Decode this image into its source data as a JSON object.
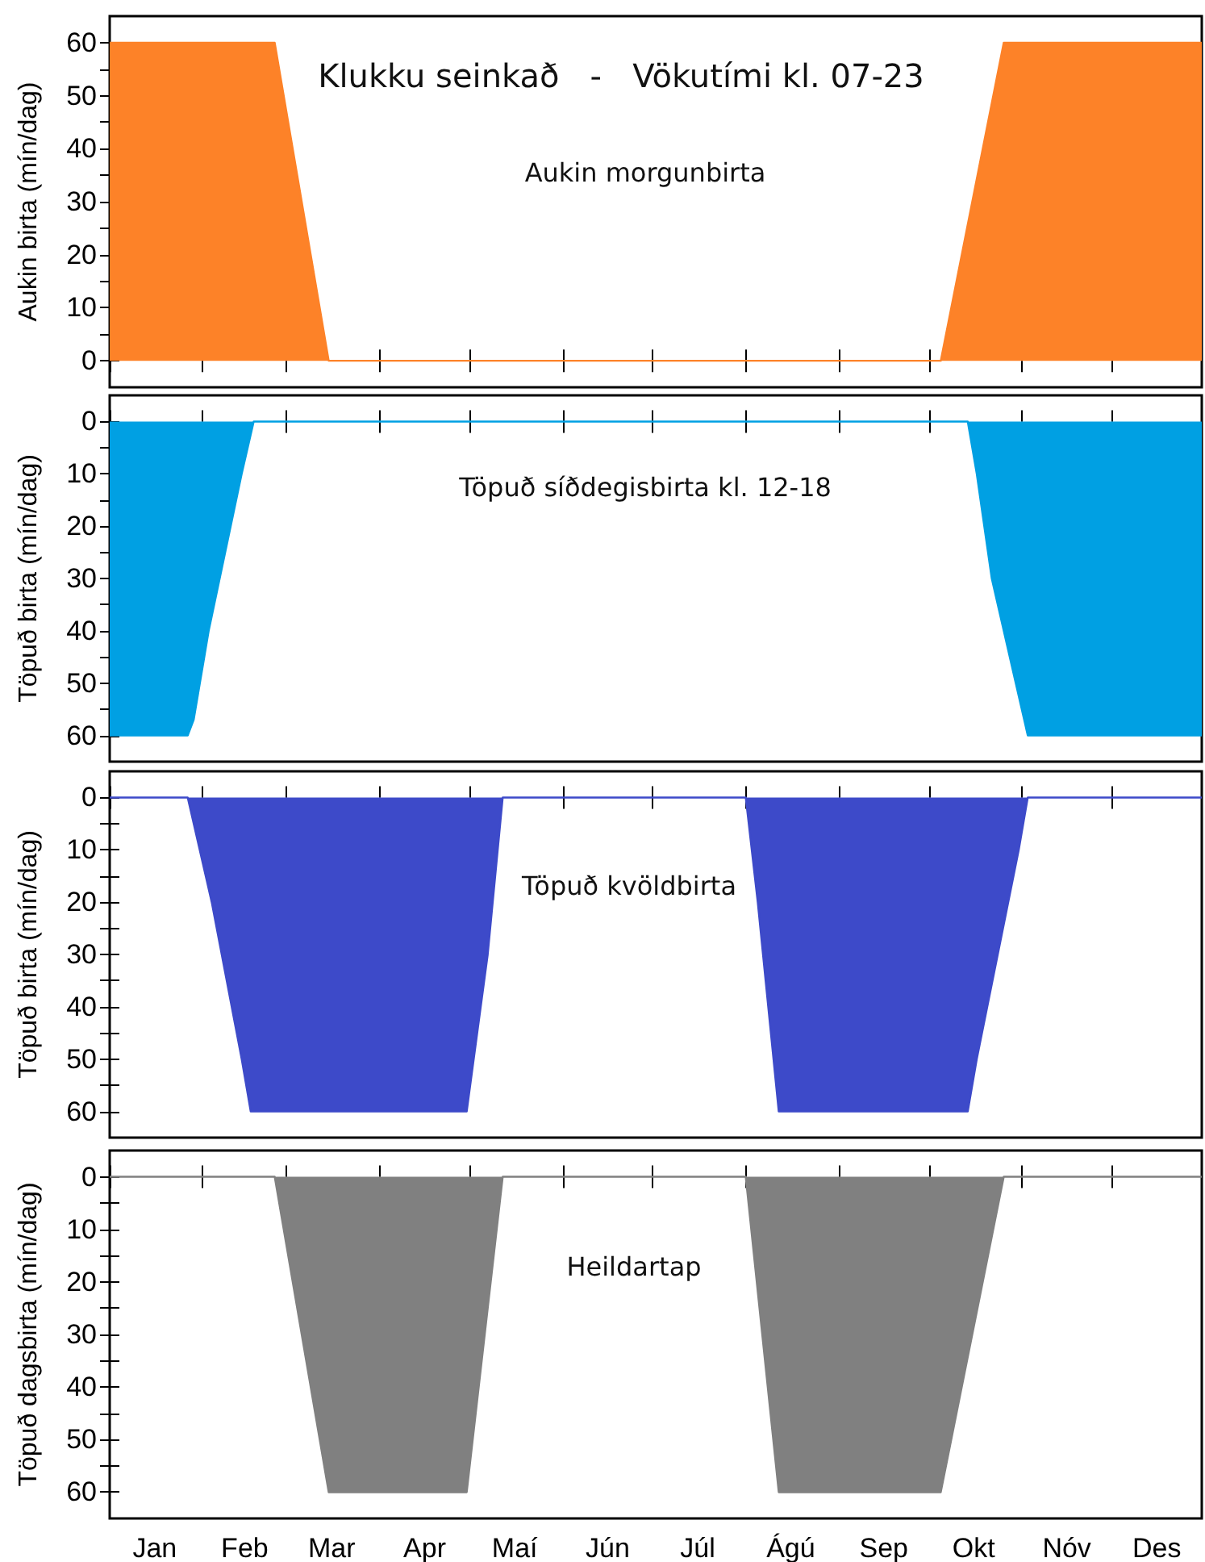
{
  "chart_data": [
    {
      "type": "area",
      "title": "Klukku seinkað   -   Vökutími kl. 07-23",
      "ylabel": "Aukin birta (mín/dag)",
      "annotations": [
        "Aukin morgunbirta"
      ],
      "series": [
        {
          "color": "#fd8228",
          "x": [
            "--01-01",
            "--02-25",
            "--03-15",
            "--10-05",
            "--10-26",
            "--12-31"
          ],
          "values": [
            60,
            60,
            0,
            0,
            60,
            60
          ]
        }
      ],
      "xlim": [
        "--01-01",
        "--12-31"
      ],
      "xticks": [
        {
          "value": "--01-01",
          "label": null
        },
        {
          "value": "--02-01",
          "label": null
        },
        {
          "value": "--03-01",
          "label": null
        },
        {
          "value": "--04-01",
          "label": null
        },
        {
          "value": "--05-01",
          "label": null
        },
        {
          "value": "--06-01",
          "label": null
        },
        {
          "value": "--07-01",
          "label": null
        },
        {
          "value": "--08-01",
          "label": null
        },
        {
          "value": "--09-01",
          "label": null
        },
        {
          "value": "--10-01",
          "label": null
        },
        {
          "value": "--11-01",
          "label": null
        },
        {
          "value": "--12-01",
          "label": null
        }
      ],
      "ylim": [
        -5,
        65
      ],
      "yticks": [
        0,
        {
          "value": 5,
          "label": null
        },
        10,
        {
          "value": 15,
          "label": null
        },
        20,
        {
          "value": 25,
          "label": null
        },
        30,
        {
          "value": 35,
          "label": null
        },
        40,
        {
          "value": 45,
          "label": null
        },
        50,
        {
          "value": 55,
          "label": null
        },
        60
      ],
      "tick_labels": "y",
      "grid": false
    },
    {
      "type": "area",
      "ylabel": "Töpuð birta (mín/dag)",
      "annotations": [
        "Töpuð síðdegisbirta kl. 12-18"
      ],
      "series": [
        {
          "color": "#00a0e3",
          "x": [
            "--01-01",
            "--01-27",
            "--01-29",
            "--02-03",
            "--02-14",
            "--02-18",
            "--10-14",
            "--10-17",
            "--10-22",
            "--10-30",
            "--11-03",
            "--12-31"
          ],
          "values": [
            60,
            60,
            57,
            40,
            10,
            0,
            0,
            10,
            30,
            50,
            60,
            60
          ]
        }
      ],
      "xlim": [
        "--01-01",
        "--12-31"
      ],
      "xticks": [
        {
          "value": "--01-01",
          "label": null
        },
        {
          "value": "--02-01",
          "label": null
        },
        {
          "value": "--03-01",
          "label": null
        },
        {
          "value": "--04-01",
          "label": null
        },
        {
          "value": "--05-01",
          "label": null
        },
        {
          "value": "--06-01",
          "label": null
        },
        {
          "value": "--07-01",
          "label": null
        },
        {
          "value": "--08-01",
          "label": null
        },
        {
          "value": "--09-01",
          "label": null
        },
        {
          "value": "--10-01",
          "label": null
        },
        {
          "value": "--11-01",
          "label": null
        },
        {
          "value": "--12-01",
          "label": null
        }
      ],
      "ylim": [
        65,
        -5
      ],
      "yticks": [
        0,
        {
          "value": 5,
          "label": null
        },
        10,
        {
          "value": 15,
          "label": null
        },
        20,
        {
          "value": 25,
          "label": null
        },
        30,
        {
          "value": 35,
          "label": null
        },
        40,
        {
          "value": 45,
          "label": null
        },
        50,
        {
          "value": 55,
          "label": null
        },
        60
      ],
      "tick_labels": "y",
      "grid": false
    },
    {
      "type": "area",
      "ylabel": "Töpuð birta (mín/dag)",
      "annotations": [
        "Töpuð kvöldbirta"
      ],
      "series": [
        {
          "color": "#3d4ac9",
          "x": [
            "--01-01",
            "--01-27",
            "--02-04",
            "--02-14",
            "--02-17",
            "--04-30",
            "--05-07",
            "--05-12",
            "--08-01",
            "--08-05",
            "--08-12",
            "--10-14",
            "--10-17",
            "--10-31",
            "--11-03",
            "--12-31"
          ],
          "values": [
            0,
            0,
            20,
            50,
            60,
            60,
            30,
            0,
            0,
            20,
            60,
            60,
            50,
            10,
            0,
            0
          ]
        }
      ],
      "xlim": [
        "--01-01",
        "--12-31"
      ],
      "xticks": [
        {
          "value": "--01-01",
          "label": null
        },
        {
          "value": "--02-01",
          "label": null
        },
        {
          "value": "--03-01",
          "label": null
        },
        {
          "value": "--04-01",
          "label": null
        },
        {
          "value": "--05-01",
          "label": null
        },
        {
          "value": "--06-01",
          "label": null
        },
        {
          "value": "--07-01",
          "label": null
        },
        {
          "value": "--08-01",
          "label": null
        },
        {
          "value": "--09-01",
          "label": null
        },
        {
          "value": "--10-01",
          "label": null
        },
        {
          "value": "--11-01",
          "label": null
        },
        {
          "value": "--12-01",
          "label": null
        }
      ],
      "ylim": [
        65,
        -5
      ],
      "yticks": [
        0,
        {
          "value": 5,
          "label": null
        },
        10,
        {
          "value": 15,
          "label": null
        },
        20,
        {
          "value": 25,
          "label": null
        },
        30,
        {
          "value": 35,
          "label": null
        },
        40,
        {
          "value": 45,
          "label": null
        },
        50,
        {
          "value": 55,
          "label": null
        },
        60
      ],
      "tick_labels": "y",
      "grid": false
    },
    {
      "type": "area",
      "ylabel": "Töpuð dagsbirta (mín/dag)",
      "annotations": [
        "Heildartap"
      ],
      "series": [
        {
          "color": "#808080",
          "x": [
            "--01-01",
            "--02-25",
            "--03-15",
            "--04-30",
            "--05-12",
            "--08-01",
            "--08-12",
            "--10-05",
            "--10-26",
            "--12-31"
          ],
          "values": [
            0,
            0,
            60,
            60,
            0,
            0,
            60,
            60,
            0,
            0
          ]
        }
      ],
      "xlim": [
        "--01-01",
        "--12-31"
      ],
      "xticks": [
        {
          "value": "--01-01",
          "label": null
        },
        {
          "value": "--01-16",
          "label": "Jan"
        },
        {
          "value": "--02-01",
          "label": null
        },
        {
          "value": "--02-15",
          "label": "Feb"
        },
        {
          "value": "--03-01",
          "label": null
        },
        {
          "value": "--03-16",
          "label": "Mar"
        },
        {
          "value": "--04-01",
          "label": null
        },
        {
          "value": "--04-16",
          "label": "Apr"
        },
        {
          "value": "--05-01",
          "label": null
        },
        {
          "value": "--05-16",
          "label": "Maí"
        },
        {
          "value": "--06-01",
          "label": null
        },
        {
          "value": "--06-16",
          "label": "Jún"
        },
        {
          "value": "--07-01",
          "label": null
        },
        {
          "value": "--07-16",
          "label": "Júl"
        },
        {
          "value": "--08-01",
          "label": null
        },
        {
          "value": "--08-16",
          "label": "Ágú"
        },
        {
          "value": "--09-01",
          "label": null
        },
        {
          "value": "--09-16",
          "label": "Sep"
        },
        {
          "value": "--10-01",
          "label": null
        },
        {
          "value": "--10-16",
          "label": "Okt"
        },
        {
          "value": "--11-01",
          "label": null
        },
        {
          "value": "--11-16",
          "label": "Nóv"
        },
        {
          "value": "--12-01",
          "label": null
        },
        {
          "value": "--12-16",
          "label": "Des"
        }
      ],
      "ylim": [
        65,
        -5
      ],
      "yticks": [
        0,
        {
          "value": 5,
          "label": null
        },
        10,
        {
          "value": 15,
          "label": null
        },
        20,
        {
          "value": 25,
          "label": null
        },
        30,
        {
          "value": 35,
          "label": null
        },
        40,
        {
          "value": 45,
          "label": null
        },
        50,
        {
          "value": 55,
          "label": null
        },
        60
      ],
      "grid": false
    }
  ]
}
